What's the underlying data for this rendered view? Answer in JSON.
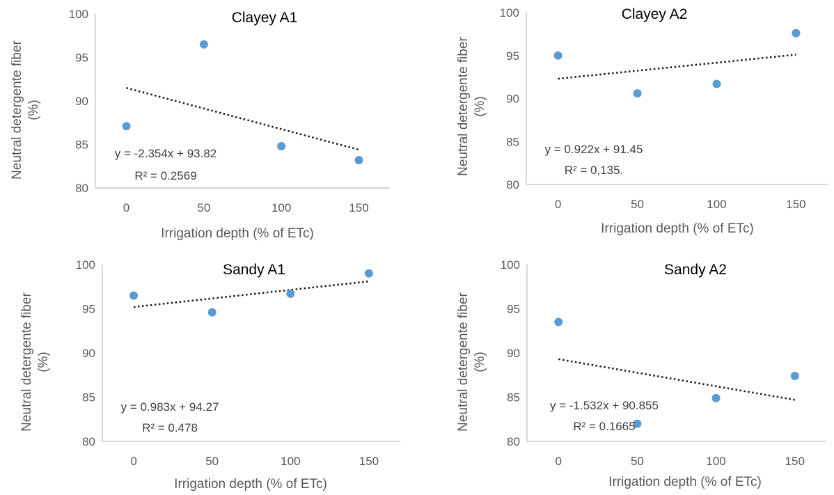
{
  "colors": {
    "point": "#5b9bd5",
    "trendline": "#1a1a1a",
    "axis": "#bfbfbf",
    "text": "#595959"
  },
  "chart_data": [
    {
      "type": "scatter",
      "title": "Clayey A1",
      "xlabel": "Irrigation depth (% of ETc)",
      "ylabel_line1": "Neutral detergente  fiber",
      "ylabel_line2": "(%)",
      "xticks": [
        "0",
        "50",
        "100",
        "150"
      ],
      "yticks": [
        "100",
        "95",
        "90",
        "85",
        "80"
      ],
      "xlim": [
        -20,
        170
      ],
      "ylim": [
        80,
        100
      ],
      "x": [
        0,
        50,
        100,
        150
      ],
      "y": [
        87.1,
        96.5,
        84.8,
        83.2
      ],
      "trendline": {
        "x1": 0,
        "y1": 91.5,
        "x2": 150,
        "y2": 84.4
      },
      "equation": "y = -2.354x + 93.82",
      "r2": "R² = 0.2569"
    },
    {
      "type": "scatter",
      "title": "Clayey A2",
      "xlabel": "Irrigation depth (% of ETc)",
      "ylabel_line1": "Neutral detergente  fiber",
      "ylabel_line2": "(%)",
      "xticks": [
        "0",
        "50",
        "100",
        "150"
      ],
      "yticks": [
        "100",
        "95",
        "90",
        "85",
        "80"
      ],
      "xlim": [
        -20,
        170
      ],
      "ylim": [
        80,
        100
      ],
      "x": [
        0,
        50,
        100,
        150
      ],
      "y": [
        95.0,
        90.6,
        91.7,
        97.6
      ],
      "trendline": {
        "x1": 0,
        "y1": 92.3,
        "x2": 150,
        "y2": 95.1
      },
      "equation": "y = 0.922x + 91.45",
      "r2": "R² = 0,135."
    },
    {
      "type": "scatter",
      "title": "Sandy A1",
      "xlabel": "Irrigation depth (% of ETc)",
      "ylabel_line1": "Neutral detergente  fiber",
      "ylabel_line2": "(%)",
      "xticks": [
        "0",
        "50",
        "100",
        "150"
      ],
      "yticks": [
        "100",
        "95",
        "90",
        "85",
        "80"
      ],
      "xlim": [
        -20,
        170
      ],
      "ylim": [
        80,
        100
      ],
      "x": [
        0,
        50,
        100,
        150
      ],
      "y": [
        96.5,
        94.6,
        96.7,
        99.0
      ],
      "trendline": {
        "x1": 0,
        "y1": 95.2,
        "x2": 150,
        "y2": 98.1
      },
      "equation": "y = 0.983x + 94.27",
      "r2": "R² = 0.478"
    },
    {
      "type": "scatter",
      "title": "Sandy A2",
      "xlabel": "Irrigation depth (% of ETc)",
      "ylabel_line1": "Neutral detergente  fiber",
      "ylabel_line2": "(%)",
      "xticks": [
        "0",
        "50",
        "100",
        "150"
      ],
      "yticks": [
        "100",
        "95",
        "90",
        "85",
        "80"
      ],
      "xlim": [
        -20,
        170
      ],
      "ylim": [
        80,
        100
      ],
      "x": [
        0,
        50,
        100,
        150
      ],
      "y": [
        93.5,
        82.0,
        84.9,
        87.4
      ],
      "trendline": {
        "x1": 0,
        "y1": 89.3,
        "x2": 150,
        "y2": 84.7
      },
      "equation": "y = -1.532x + 90.855",
      "r2": "R² = 0.1665"
    }
  ]
}
